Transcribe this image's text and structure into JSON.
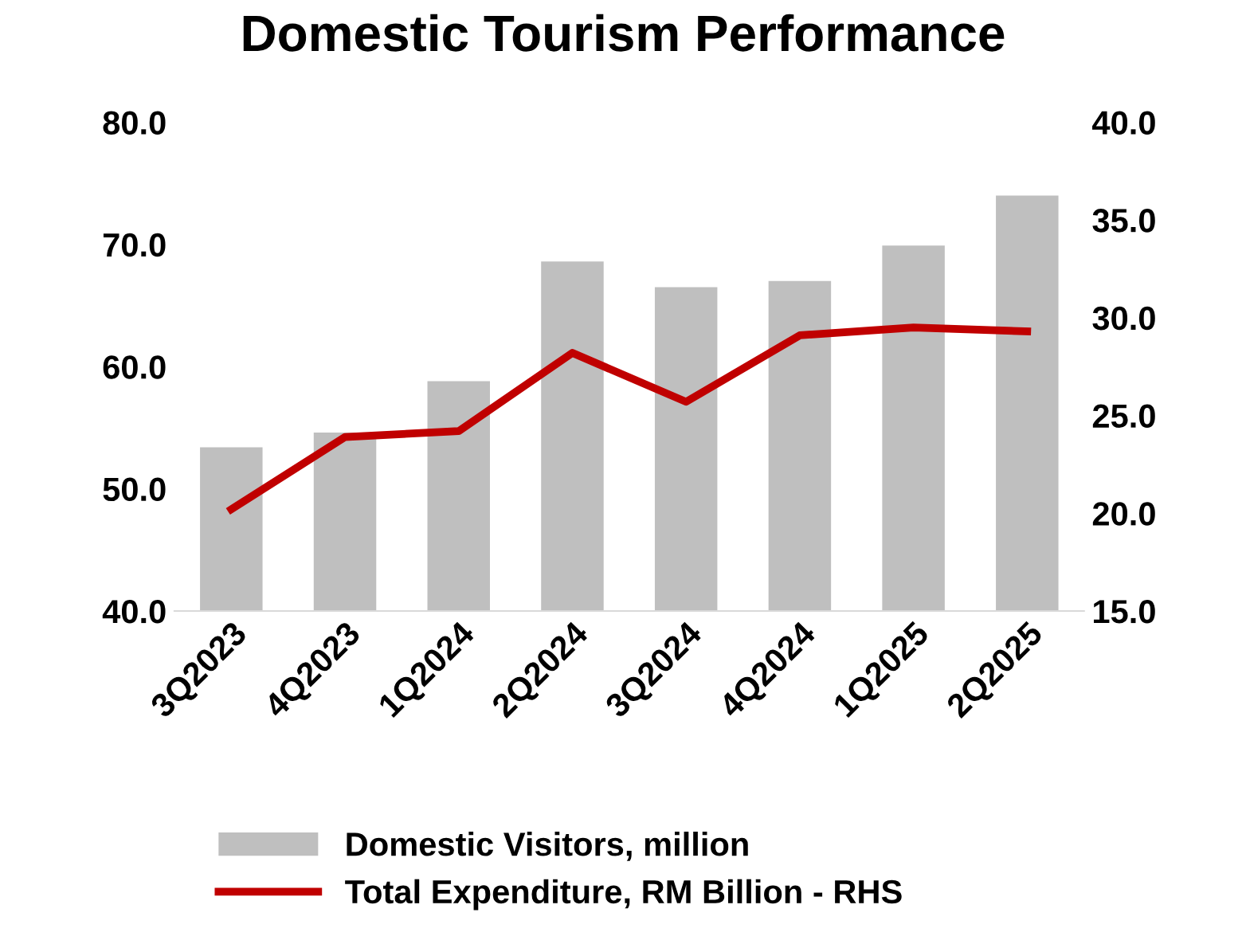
{
  "chart_data": {
    "type": "bar",
    "title": "Domestic Tourism Performance",
    "categories": [
      "3Q2023",
      "4Q2023",
      "1Q2024",
      "2Q2024",
      "3Q2024",
      "4Q2024",
      "1Q2025",
      "2Q2025"
    ],
    "series": [
      {
        "name": "Domestic Visitors, million",
        "color": "#bfbfbf",
        "values": [
          53.4,
          54.6,
          58.8,
          68.6,
          66.5,
          67.0,
          69.9,
          74.0
        ]
      },
      {
        "name": "Total Expenditure, RM Billion - RHS",
        "color": "#c00000",
        "type": "line",
        "axis": "y2",
        "values": [
          20.2,
          23.9,
          24.2,
          28.2,
          25.7,
          29.1,
          29.5,
          29.3
        ]
      }
    ],
    "ylim": [
      40,
      80
    ],
    "yticks": [
      {
        "value": 40,
        "label": "40.0"
      },
      {
        "value": 50,
        "label": "50.0"
      },
      {
        "value": 60,
        "label": "60.0"
      },
      {
        "value": 70,
        "label": "70.0"
      },
      {
        "value": 80,
        "label": "80.0"
      }
    ],
    "y2lim": [
      15,
      40
    ],
    "y2ticks": [
      {
        "value": 15,
        "label": "15.0"
      },
      {
        "value": 20,
        "label": "20.0"
      },
      {
        "value": 25,
        "label": "25.0"
      },
      {
        "value": 30,
        "label": "30.0"
      },
      {
        "value": 35,
        "label": "35.0"
      },
      {
        "value": 40,
        "label": "40.0"
      }
    ],
    "legend": "bottom",
    "grid": false,
    "marker": "none",
    "line_style": "solid"
  }
}
